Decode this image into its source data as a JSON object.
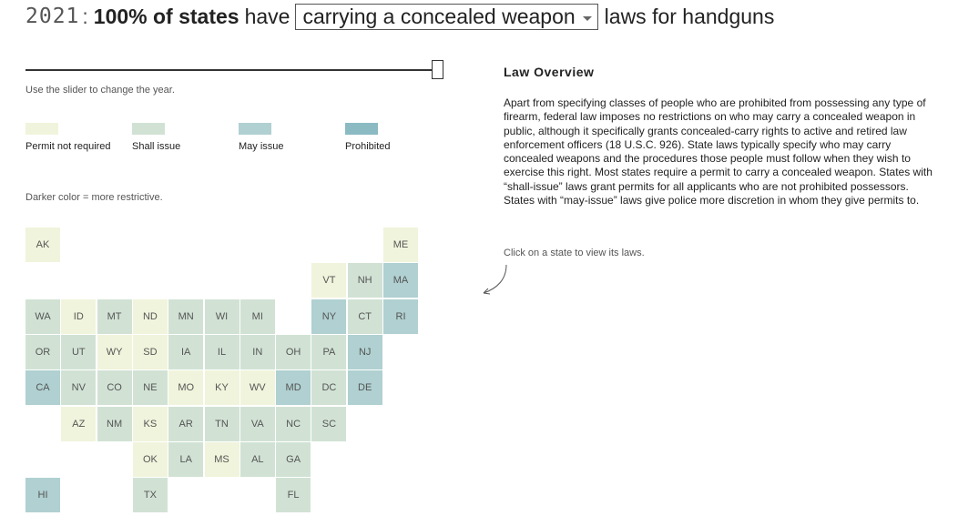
{
  "header": {
    "year": "2021",
    "colon": ":",
    "stat": "100% of states",
    "have": "have",
    "selected_law": "carrying a concealed weapon",
    "suffix": "laws for handguns"
  },
  "slider": {
    "hint": "Use the slider to change the year.",
    "value_fraction": 1.0
  },
  "legend": {
    "items": [
      {
        "label": "Permit not required",
        "color": "#f0f4dc"
      },
      {
        "label": "Shall issue",
        "color": "#d1e2d4"
      },
      {
        "label": "May issue",
        "color": "#b0d0d1"
      },
      {
        "label": "Prohibited",
        "color": "#8bbac3"
      }
    ],
    "note": "Darker color = more restrictive."
  },
  "overview": {
    "title": "Law Overview",
    "body": "Apart from specifying classes of people who are prohibited from possessing any type of firearm, federal law imposes no restrictions on who may carry a concealed weapon in public, although it specifically grants concealed-carry rights to active and retired law enforcement officers (18 U.S.C. 926). State laws typically specify who may carry concealed weapons and the procedures those people must follow when they wish to exercise this right. Most states require a permit to carry a concealed weapon. States with “shall-issue” laws grant permits for all applicants who are not prohibited possessors. States with “may-issue” laws give police more discretion in whom they give permits to.",
    "click_hint": "Click on a state to view its laws."
  },
  "states": [
    {
      "abbr": "AK",
      "cat": 0
    },
    {
      "abbr": "ME",
      "cat": 0
    },
    {
      "abbr": "VT",
      "cat": 0
    },
    {
      "abbr": "NH",
      "cat": 1
    },
    {
      "abbr": "MA",
      "cat": 2
    },
    {
      "abbr": "WA",
      "cat": 1
    },
    {
      "abbr": "ID",
      "cat": 0
    },
    {
      "abbr": "MT",
      "cat": 1
    },
    {
      "abbr": "ND",
      "cat": 0
    },
    {
      "abbr": "MN",
      "cat": 1
    },
    {
      "abbr": "WI",
      "cat": 1
    },
    {
      "abbr": "MI",
      "cat": 1
    },
    {
      "abbr": "NY",
      "cat": 2
    },
    {
      "abbr": "CT",
      "cat": 1
    },
    {
      "abbr": "RI",
      "cat": 2
    },
    {
      "abbr": "OR",
      "cat": 1
    },
    {
      "abbr": "UT",
      "cat": 1
    },
    {
      "abbr": "WY",
      "cat": 0
    },
    {
      "abbr": "SD",
      "cat": 0
    },
    {
      "abbr": "IA",
      "cat": 1
    },
    {
      "abbr": "IL",
      "cat": 1
    },
    {
      "abbr": "IN",
      "cat": 1
    },
    {
      "abbr": "OH",
      "cat": 1
    },
    {
      "abbr": "PA",
      "cat": 1
    },
    {
      "abbr": "NJ",
      "cat": 2
    },
    {
      "abbr": "CA",
      "cat": 2
    },
    {
      "abbr": "NV",
      "cat": 1
    },
    {
      "abbr": "CO",
      "cat": 1
    },
    {
      "abbr": "NE",
      "cat": 1
    },
    {
      "abbr": "MO",
      "cat": 0
    },
    {
      "abbr": "KY",
      "cat": 0
    },
    {
      "abbr": "WV",
      "cat": 0
    },
    {
      "abbr": "MD",
      "cat": 2
    },
    {
      "abbr": "DC",
      "cat": 1
    },
    {
      "abbr": "DE",
      "cat": 2
    },
    {
      "abbr": "AZ",
      "cat": 0
    },
    {
      "abbr": "NM",
      "cat": 1
    },
    {
      "abbr": "KS",
      "cat": 0
    },
    {
      "abbr": "AR",
      "cat": 1
    },
    {
      "abbr": "TN",
      "cat": 1
    },
    {
      "abbr": "VA",
      "cat": 1
    },
    {
      "abbr": "NC",
      "cat": 1
    },
    {
      "abbr": "SC",
      "cat": 1
    },
    {
      "abbr": "OK",
      "cat": 0
    },
    {
      "abbr": "LA",
      "cat": 1
    },
    {
      "abbr": "MS",
      "cat": 0
    },
    {
      "abbr": "AL",
      "cat": 1
    },
    {
      "abbr": "GA",
      "cat": 1
    },
    {
      "abbr": "HI",
      "cat": 2
    },
    {
      "abbr": "TX",
      "cat": 1
    },
    {
      "abbr": "FL",
      "cat": 1
    }
  ]
}
